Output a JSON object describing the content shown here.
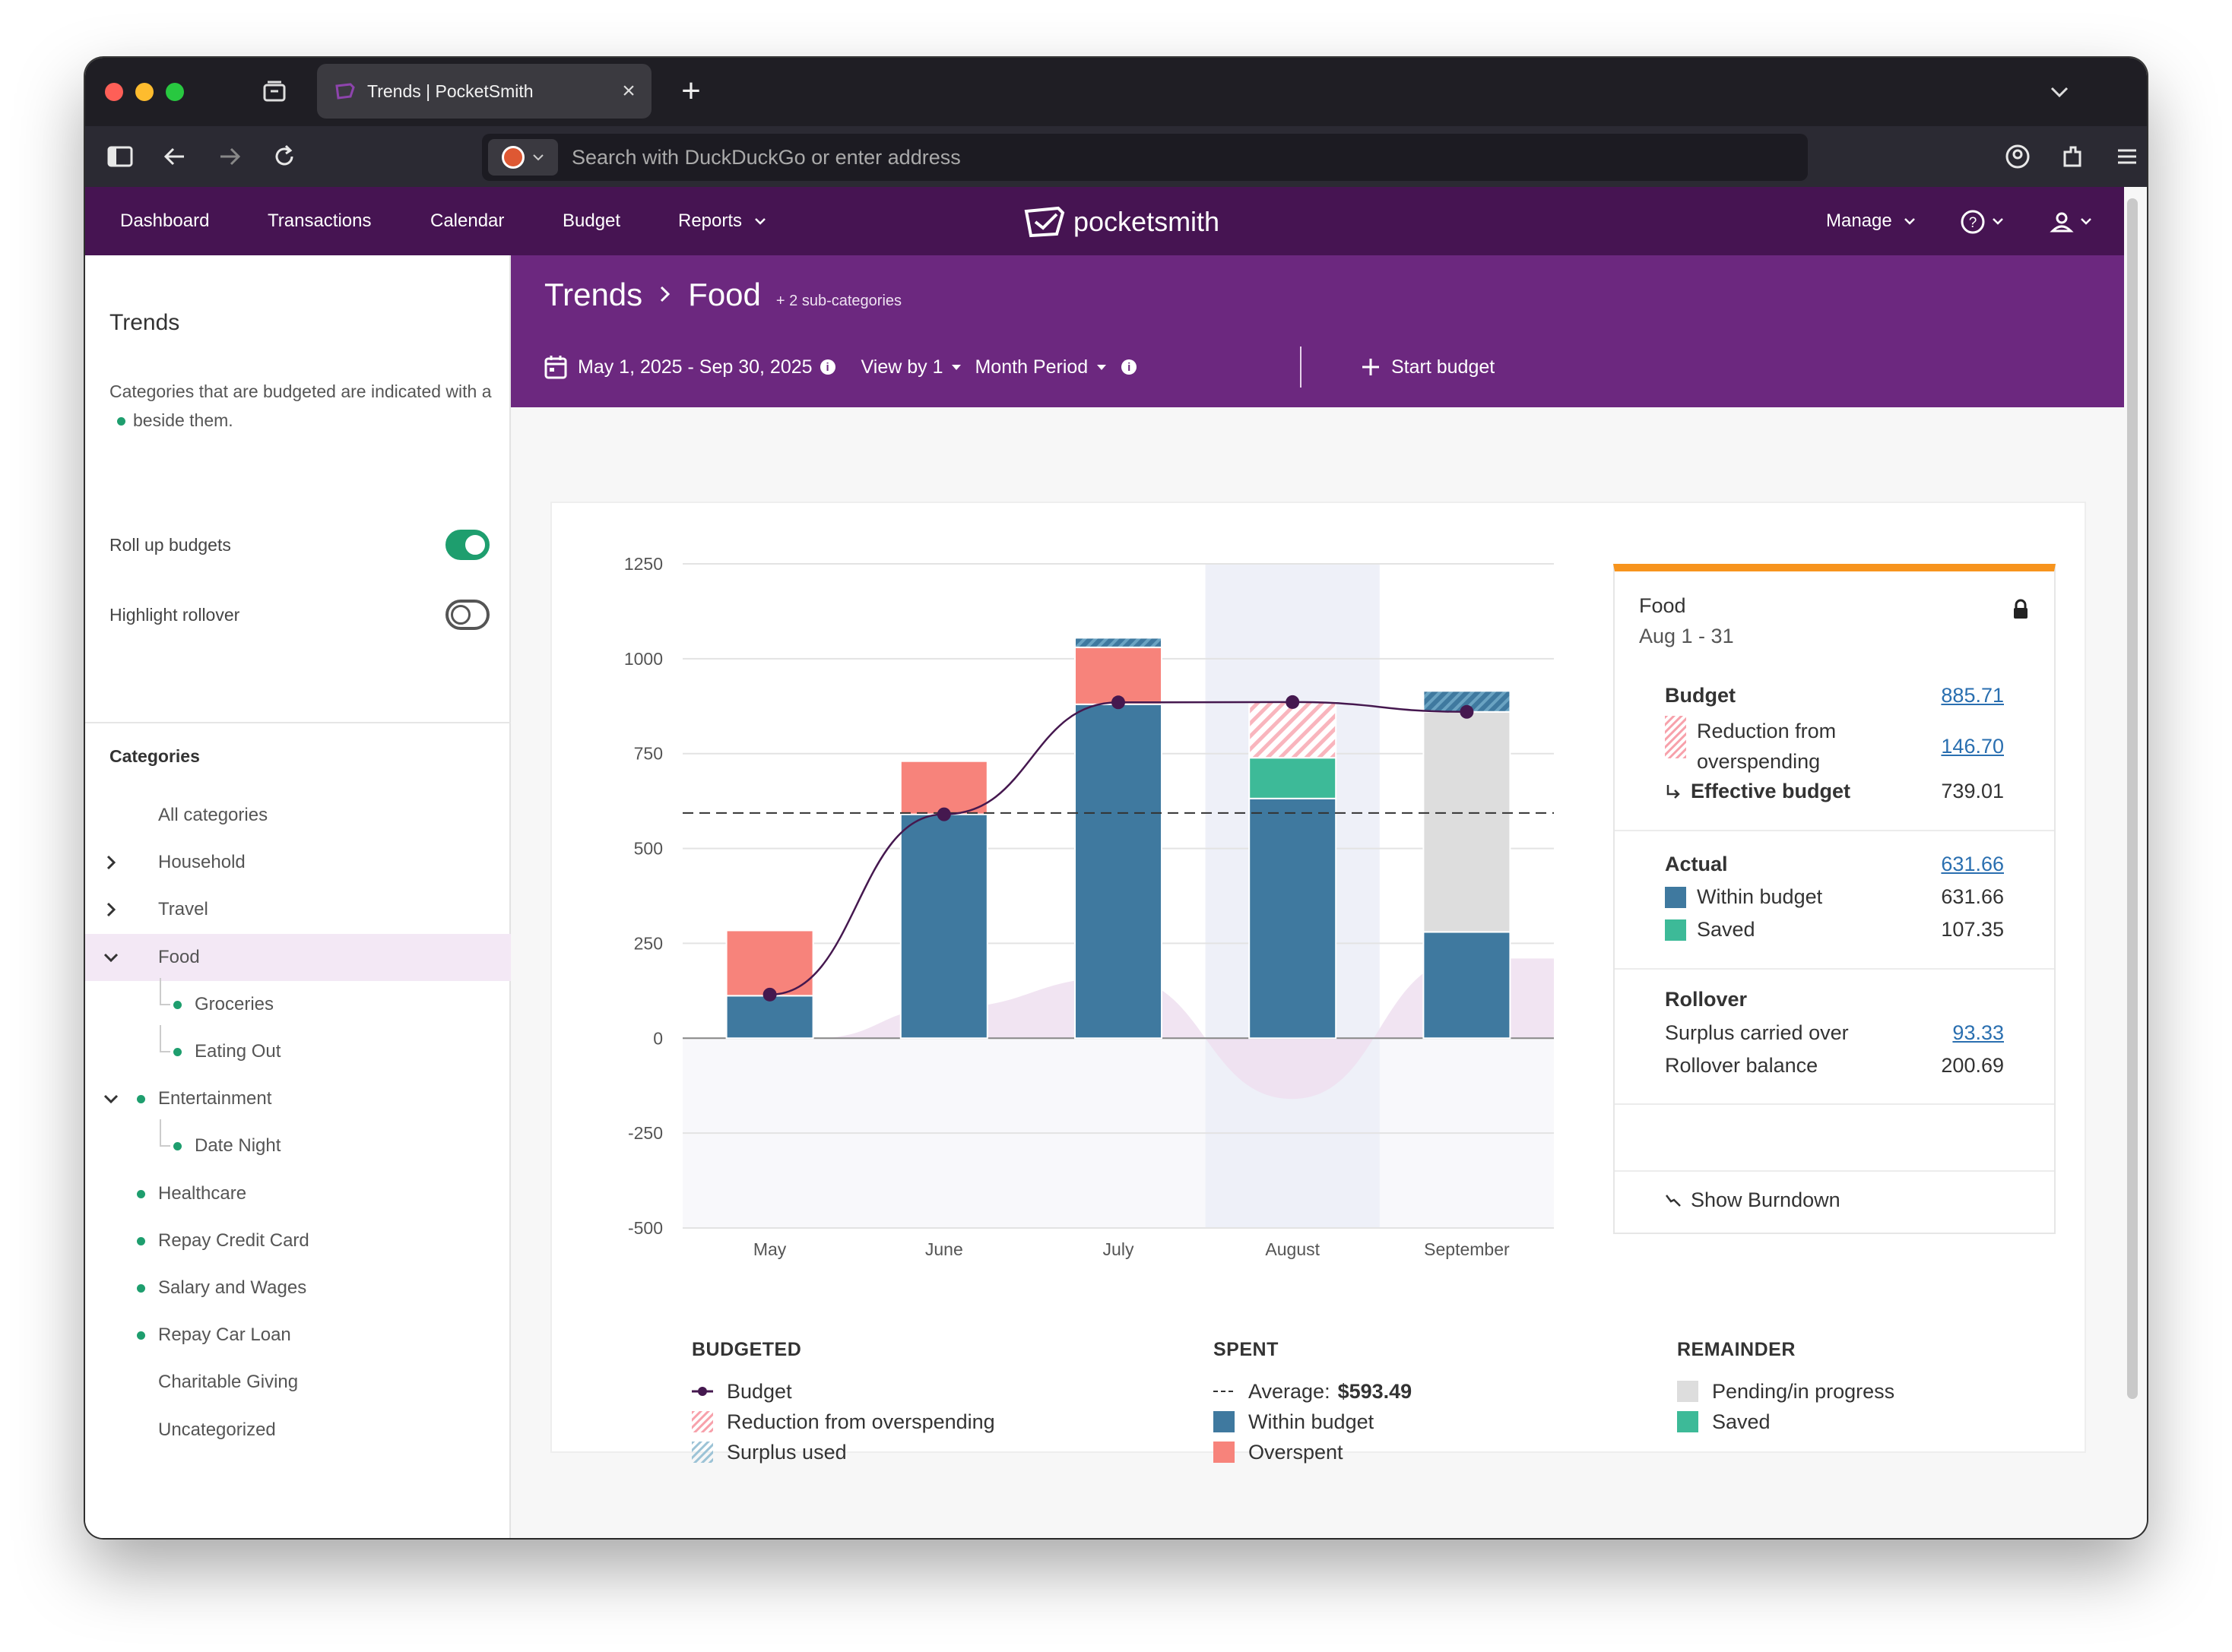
{
  "browser": {
    "tab_title": "Trends | PocketSmith",
    "url_placeholder": "Search with DuckDuckGo or enter address"
  },
  "nav": {
    "items": [
      "Dashboard",
      "Transactions",
      "Calendar",
      "Budget",
      "Reports"
    ],
    "logo_text": "pocketsmith",
    "manage": "Manage"
  },
  "sidebar": {
    "title": "Trends",
    "desc_before": "Categories that are budgeted are indicated with a",
    "desc_after": "beside them.",
    "toggles": [
      {
        "label": "Roll up budgets",
        "on": true
      },
      {
        "label": "Highlight rollover",
        "on": false
      }
    ],
    "categories_title": "Categories",
    "categories": [
      {
        "label": "All categories",
        "chevron": "",
        "budgeted": false,
        "depth": 0
      },
      {
        "label": "Household",
        "chevron": "right",
        "budgeted": false,
        "depth": 0
      },
      {
        "label": "Travel",
        "chevron": "right",
        "budgeted": false,
        "depth": 0
      },
      {
        "label": "Food",
        "chevron": "down",
        "budgeted": false,
        "depth": 0,
        "active": true
      },
      {
        "label": "Groceries",
        "chevron": "",
        "budgeted": true,
        "depth": 1
      },
      {
        "label": "Eating Out",
        "chevron": "",
        "budgeted": true,
        "depth": 1
      },
      {
        "label": "Entertainment",
        "chevron": "down",
        "budgeted": true,
        "depth": 0
      },
      {
        "label": "Date Night",
        "chevron": "",
        "budgeted": true,
        "depth": 1
      },
      {
        "label": "Healthcare",
        "chevron": "",
        "budgeted": true,
        "depth": 0
      },
      {
        "label": "Repay Credit Card",
        "chevron": "",
        "budgeted": true,
        "depth": 0
      },
      {
        "label": "Salary and Wages",
        "chevron": "",
        "budgeted": true,
        "depth": 0
      },
      {
        "label": "Repay Car Loan",
        "chevron": "",
        "budgeted": true,
        "depth": 0
      },
      {
        "label": "Charitable Giving",
        "chevron": "",
        "budgeted": false,
        "depth": 0
      },
      {
        "label": "Uncategorized",
        "chevron": "",
        "budgeted": false,
        "depth": 0
      }
    ]
  },
  "header": {
    "crumb_root": "Trends",
    "crumb_current": "Food",
    "sub_categories": "+ 2 sub-categories",
    "date_range": "May 1, 2025 - Sep 30, 2025",
    "view_by": "View by 1",
    "period": "Month Period",
    "start_budget": "Start budget"
  },
  "chart_data": {
    "type": "bar",
    "categories": [
      "May",
      "June",
      "July",
      "August",
      "September"
    ],
    "ylim": [
      -500,
      1250
    ],
    "yticks": [
      1250,
      1000,
      750,
      500,
      250,
      0,
      -250,
      -500
    ],
    "highlight_category": "August",
    "average": 593.49,
    "series": [
      {
        "name": "Within budget",
        "color": "#3f799f",
        "values": [
          112,
          590,
          880,
          631.66,
          280
        ]
      },
      {
        "name": "Saved",
        "color": "#3dba98",
        "values": [
          0,
          0,
          0,
          107.35,
          0
        ]
      },
      {
        "name": "Overspent",
        "color": "#f7837b",
        "values": [
          172,
          140,
          150,
          0,
          0
        ]
      },
      {
        "name": "Pending/in progress",
        "color": "#dddddd",
        "values": [
          0,
          0,
          0,
          0,
          580
        ]
      },
      {
        "name": "Reduction from overspending",
        "color": "#f9b5bd",
        "values": [
          0,
          0,
          0,
          146.7,
          0
        ]
      },
      {
        "name": "Surplus used",
        "color": "#5b9ab8",
        "values": [
          0,
          0,
          25,
          0,
          55
        ]
      }
    ],
    "budget_line": {
      "name": "Budget",
      "color": "#45184f",
      "values": [
        115,
        590,
        885,
        885.71,
        860
      ]
    },
    "rollover_area": {
      "color": "#eedff0",
      "values": [
        0,
        80,
        160,
        -160,
        210
      ]
    }
  },
  "legend": {
    "budgeted": {
      "title": "BUDGETED",
      "items": [
        "Budget",
        "Reduction from overspending",
        "Surplus used"
      ]
    },
    "spent": {
      "title": "SPENT",
      "average_label": "Average:",
      "average_value": "$593.49",
      "items": [
        "Within budget",
        "Overspent"
      ]
    },
    "remainder": {
      "title": "REMAINDER",
      "items": [
        "Pending/in progress",
        "Saved"
      ]
    }
  },
  "details": {
    "title": "Food",
    "period": "Aug 1 - 31",
    "budget_label": "Budget",
    "budget_value": "885.71",
    "reduction_label": "Reduction from overspending",
    "reduction_value": "146.70",
    "effective_label": "Effective budget",
    "effective_value": "739.01",
    "actual_label": "Actual",
    "actual_value": "631.66",
    "within_label": "Within budget",
    "within_value": "631.66",
    "saved_label": "Saved",
    "saved_value": "107.35",
    "rollover_label": "Rollover",
    "surplus_label": "Surplus carried over",
    "surplus_value": "93.33",
    "balance_label": "Rollover balance",
    "balance_value": "200.69",
    "burndown_label": "Show Burndown"
  },
  "colors": {
    "nav": "#461452",
    "header": "#6c287f",
    "accent": "#f7941d",
    "budgeted_dot": "#1e9e6e"
  }
}
